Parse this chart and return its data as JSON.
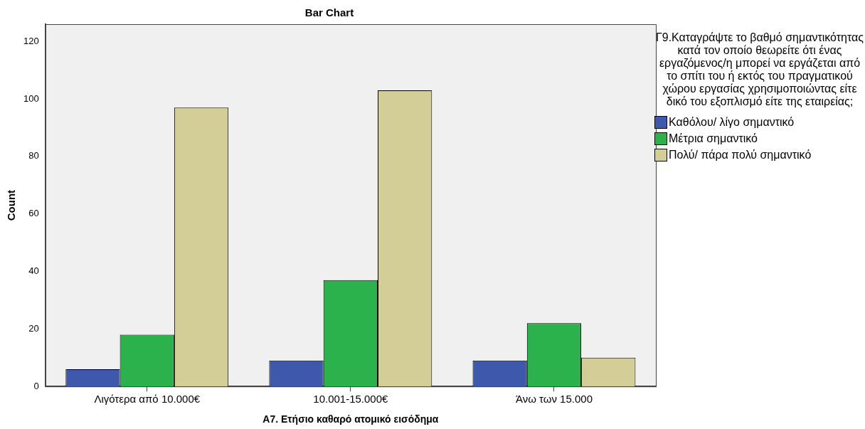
{
  "chart_data": {
    "type": "bar",
    "title": "Bar Chart",
    "xlabel": "A7. Ετήσιο καθαρό ατομικό εισόδημα",
    "ylabel": "Count",
    "legend_title": "Γ9.Καταγράψτε το βαθμό σημαντικότητας κατά τον οποίο θεωρείτε ότι ένας εργαζόμενος/η μπορεί να εργάζεται από το σπίτι του ή εκτός του πραγματικού χώρου εργασίας χρησιμοποιώντας είτε δικό του εξοπλισμό είτε της εταιρείας;",
    "legend": "right",
    "grid": false,
    "categories": [
      "Λιγότερα από 10.000€",
      "10.001-15.000€",
      "Άνω των 15.000"
    ],
    "series": [
      {
        "name": "Καθόλου/ λίγο σημαντικό",
        "color": "#3e58ac",
        "values": [
          6,
          9,
          9
        ]
      },
      {
        "name": "Μέτρια σημαντικό",
        "color": "#2bb24d",
        "values": [
          18,
          37,
          22
        ]
      },
      {
        "name": "Πολύ/ πάρα πολύ σημαντικό",
        "color": "#d3ce97",
        "values": [
          97,
          103,
          10
        ]
      }
    ],
    "ylim": [
      0,
      126
    ],
    "yticks": [
      0,
      20,
      40,
      60,
      80,
      100,
      120
    ]
  }
}
